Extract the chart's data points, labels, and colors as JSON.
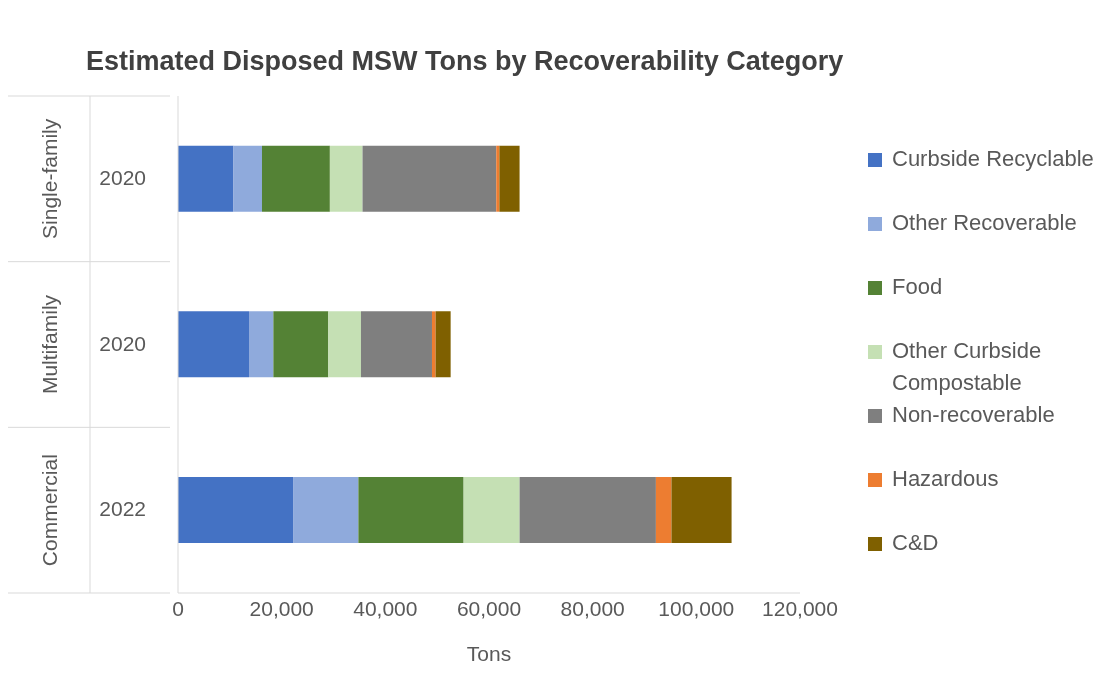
{
  "chart_data": {
    "type": "bar",
    "orientation": "horizontal",
    "stacked": true,
    "title": "Estimated Disposed MSW Tons by Recoverability Category",
    "xlabel": "Tons",
    "categories": [
      "2020",
      "2020",
      "2022"
    ],
    "annotations": [
      "Single-family",
      "Multifamily",
      "Commercial"
    ],
    "series": [
      {
        "name": "Curbside Recyclable",
        "color": "#4472c4",
        "values": [
          10700,
          13700,
          22200
        ]
      },
      {
        "name": "Other Recoverable",
        "color": "#8faadc",
        "values": [
          5500,
          4700,
          12600
        ]
      },
      {
        "name": "Food",
        "color": "#548235",
        "values": [
          13100,
          10600,
          20300
        ]
      },
      {
        "name": "Other Curbside Compostable",
        "color": "#c5e0b4",
        "values": [
          6300,
          6300,
          10800
        ]
      },
      {
        "name": "Non-recoverable",
        "color": "#7f7f7f",
        "values": [
          25800,
          13700,
          26300
        ]
      },
      {
        "name": "Hazardous",
        "color": "#ed7d31",
        "values": [
          600,
          700,
          3000
        ]
      },
      {
        "name": "C&D",
        "color": "#7f6000",
        "values": [
          3900,
          2900,
          11600
        ]
      }
    ],
    "xlim": [
      0,
      120000
    ],
    "xticks": [
      0,
      {
        "value": 20000,
        "label": "20,000"
      },
      {
        "value": 40000,
        "label": "40,000"
      },
      {
        "value": 60000,
        "label": "60,000"
      },
      {
        "value": 80000,
        "label": "80,000"
      },
      {
        "value": 100000,
        "label": "100,000"
      },
      {
        "value": 120000,
        "label": "120,000"
      }
    ],
    "grid": false,
    "legend": "right"
  }
}
